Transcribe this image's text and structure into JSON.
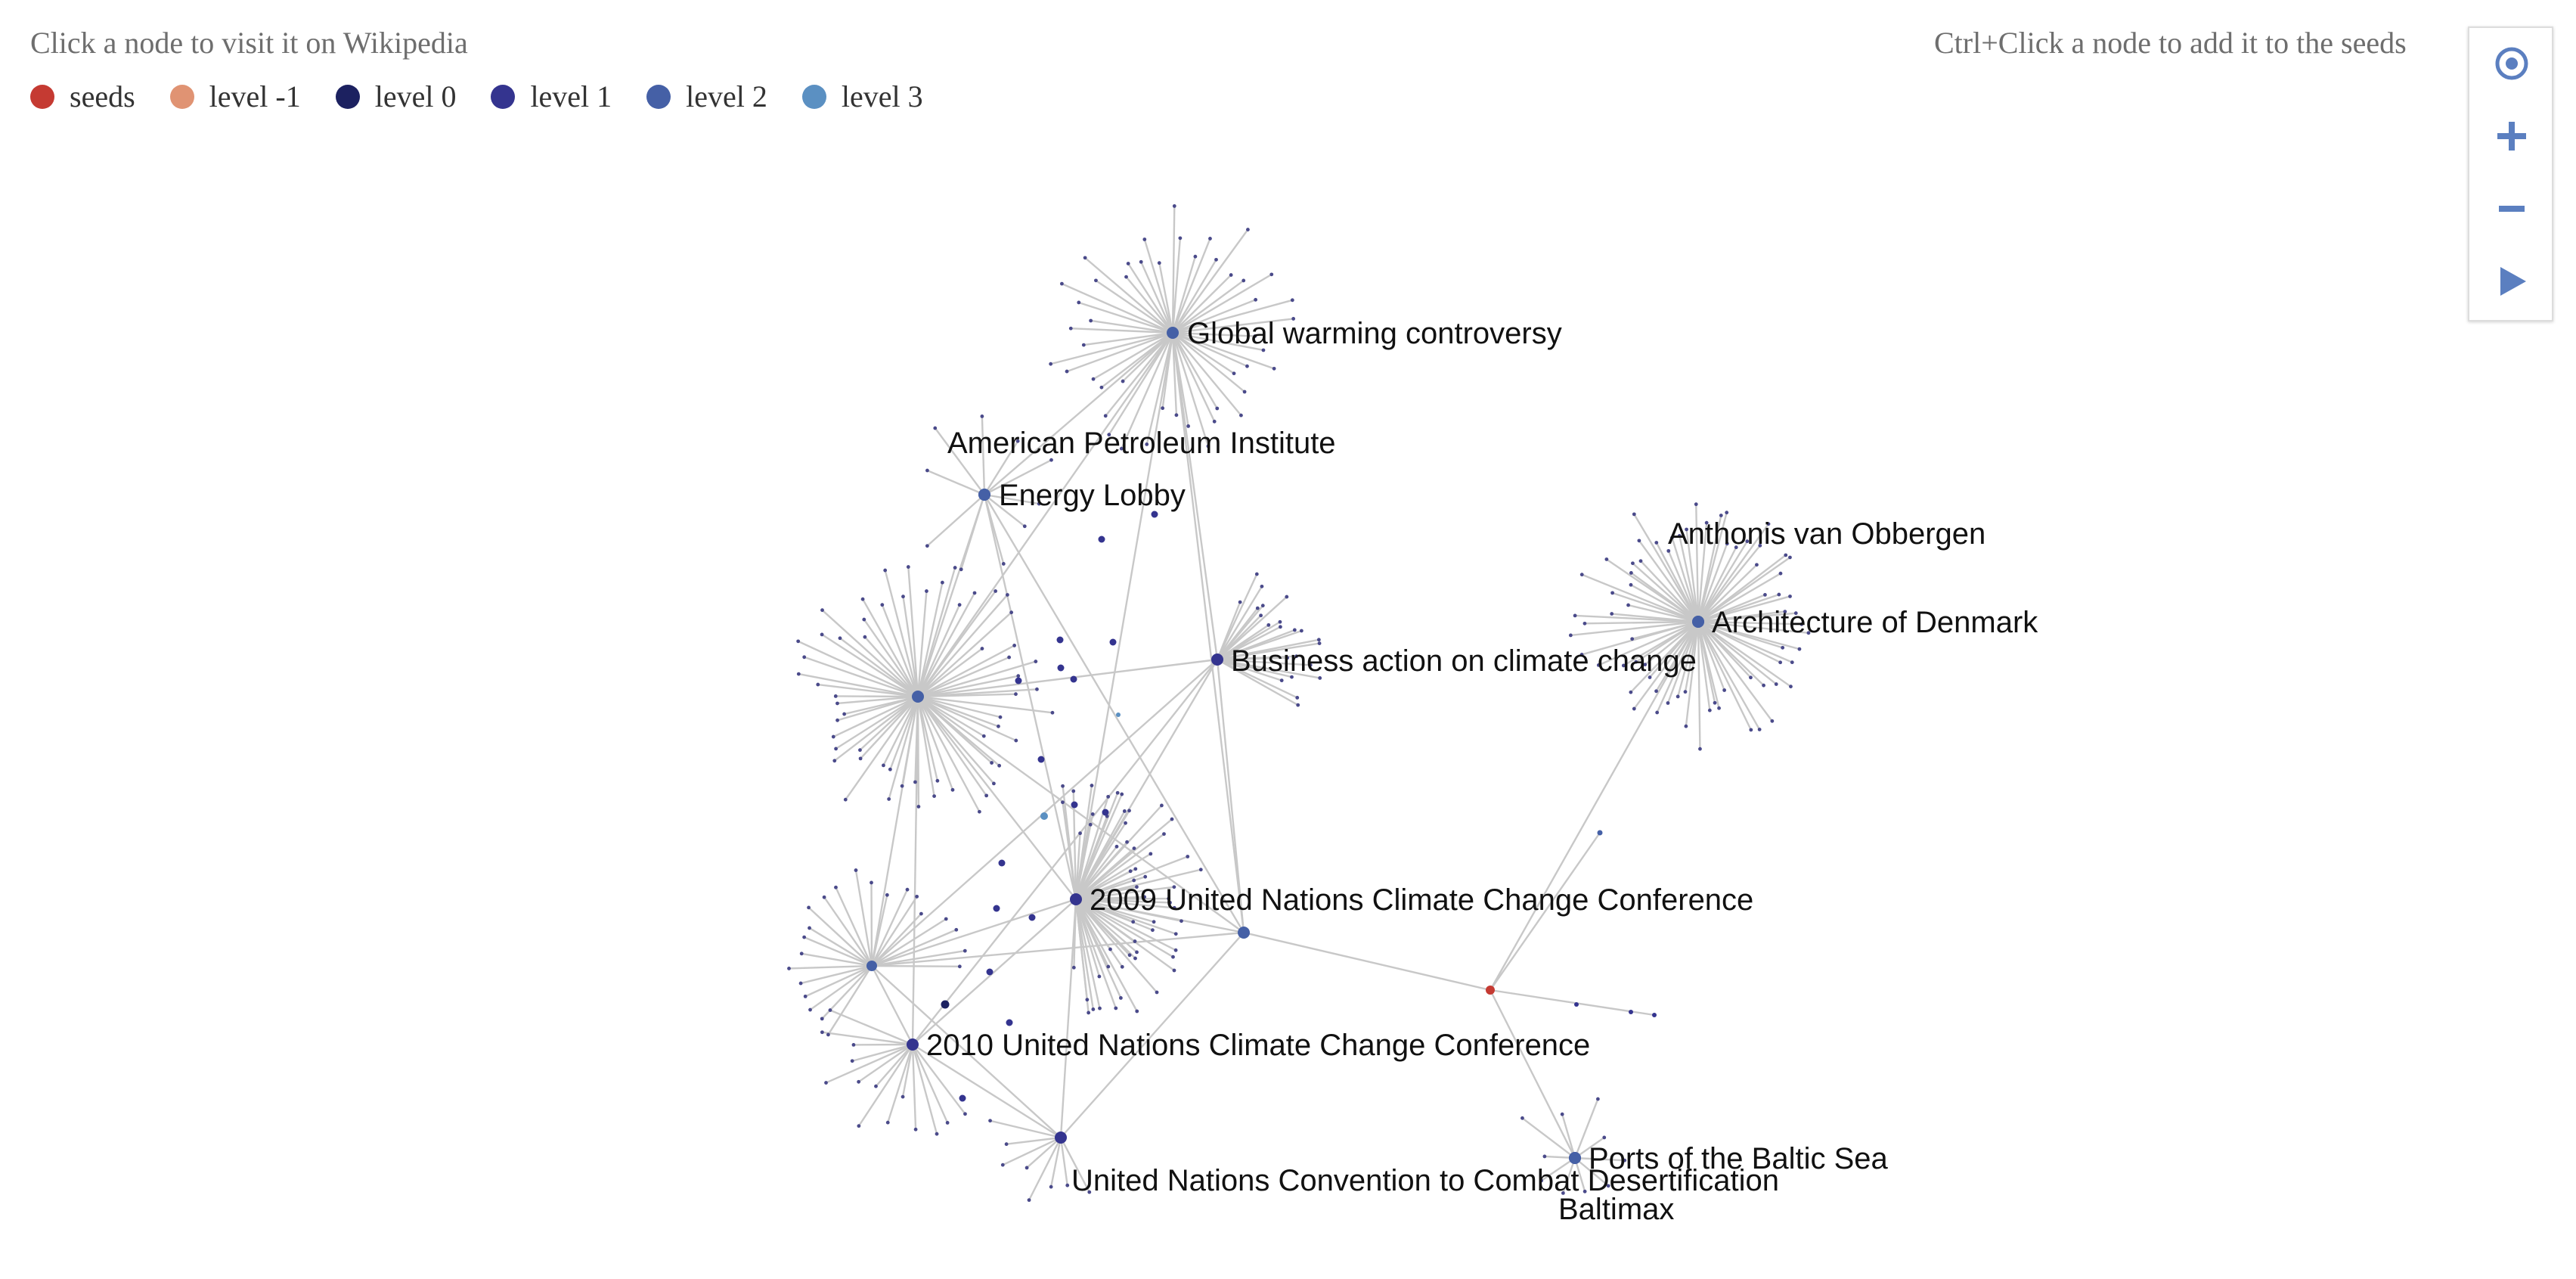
{
  "hints": {
    "left": "Click a node to visit it on Wikipedia",
    "right": "Ctrl+Click a node to add it to the seeds"
  },
  "legend": [
    {
      "label": "seeds",
      "color": "#c53a32"
    },
    {
      "label": "level -1",
      "color": "#e09373"
    },
    {
      "label": "level 0",
      "color": "#1c2160"
    },
    {
      "label": "level 1",
      "color": "#34348f"
    },
    {
      "label": "level 2",
      "color": "#4560a6"
    },
    {
      "label": "level 3",
      "color": "#5b90c2"
    }
  ],
  "toolbar": [
    {
      "name": "center-view-icon"
    },
    {
      "name": "zoom-in-icon"
    },
    {
      "name": "zoom-out-icon"
    },
    {
      "name": "play-icon"
    }
  ],
  "graph": {
    "edge_color": "#c8c8c8",
    "nodes": [
      {
        "label": "Global warming controversy",
        "level": "level 2"
      },
      {
        "label": "American Petroleum Institute",
        "level": "level 2"
      },
      {
        "label": "Energy Lobby",
        "level": "level 2"
      },
      {
        "label": "Business action on climate change",
        "level": "level 1"
      },
      {
        "label": "Anthonis van Obbergen",
        "level": "level 2"
      },
      {
        "label": "Architecture of Denmark",
        "level": "level 2"
      },
      {
        "label": "2009 United Nations Climate Change Conference",
        "level": "level 1"
      },
      {
        "label": "2010 United Nations Climate Change Conference",
        "level": "level 1"
      },
      {
        "label": "United Nations Convention to Combat Desertification",
        "level": "level 1"
      },
      {
        "label": "Ports of the Baltic Sea",
        "level": "level 1"
      },
      {
        "label": "Baltimax",
        "level": "level 2"
      }
    ]
  }
}
